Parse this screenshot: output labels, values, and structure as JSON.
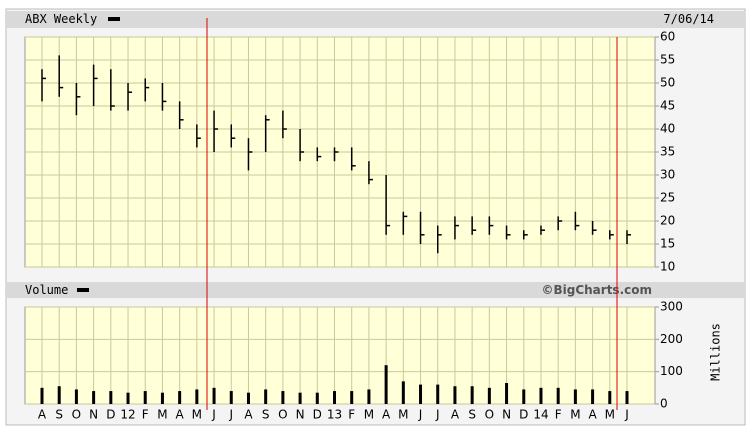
{
  "header": {
    "title": "ABX Weekly",
    "date": "7/06/14"
  },
  "chart_data": [
    {
      "type": "ohlc",
      "categories": [
        "A",
        "S",
        "O",
        "N",
        "D",
        "12",
        "F",
        "M",
        "A",
        "M",
        "J",
        "J",
        "A",
        "S",
        "O",
        "N",
        "D",
        "13",
        "F",
        "M",
        "A",
        "M",
        "J",
        "J",
        "A",
        "S",
        "O",
        "N",
        "D",
        "14",
        "F",
        "M",
        "A",
        "M",
        "J"
      ],
      "high": [
        53,
        56,
        50,
        54,
        53,
        50,
        51,
        50,
        46,
        41,
        44,
        41,
        38,
        43,
        44,
        40,
        36,
        36,
        36,
        33,
        30,
        22,
        22,
        19,
        21,
        21,
        21,
        19,
        18,
        19,
        21,
        22,
        20,
        18,
        18
      ],
      "low": [
        46,
        47,
        43,
        45,
        44,
        44,
        46,
        44,
        40,
        36,
        35,
        36,
        31,
        35,
        38,
        33,
        33,
        33,
        31,
        28,
        17,
        17,
        15,
        13,
        16,
        17,
        17,
        16,
        16,
        17,
        18,
        18,
        17,
        16,
        15
      ],
      "close": [
        51,
        49,
        47,
        51,
        45,
        48,
        49,
        46,
        42,
        38,
        40,
        38,
        35,
        42,
        40,
        35,
        34,
        35,
        32,
        29,
        19,
        21,
        17,
        17,
        19,
        18,
        19,
        17,
        17,
        18,
        20,
        19,
        18,
        17,
        17
      ],
      "color": "#000000",
      "ylim": [
        10,
        60
      ],
      "yticks": [
        10,
        15,
        20,
        25,
        30,
        35,
        40,
        45,
        50,
        55,
        60
      ],
      "grid": true
    },
    {
      "type": "bar",
      "title": "Volume",
      "credit": "©BigCharts.com",
      "y_label": "Millions",
      "values": [
        50,
        55,
        45,
        40,
        40,
        35,
        40,
        35,
        40,
        45,
        50,
        40,
        35,
        45,
        40,
        35,
        35,
        40,
        40,
        45,
        120,
        70,
        60,
        60,
        55,
        55,
        50,
        65,
        45,
        50,
        50,
        45,
        45,
        40,
        40
      ],
      "color": "#000000",
      "ylim": [
        0,
        300
      ],
      "yticks": [
        0,
        100,
        200,
        300
      ],
      "grid": true
    }
  ]
}
